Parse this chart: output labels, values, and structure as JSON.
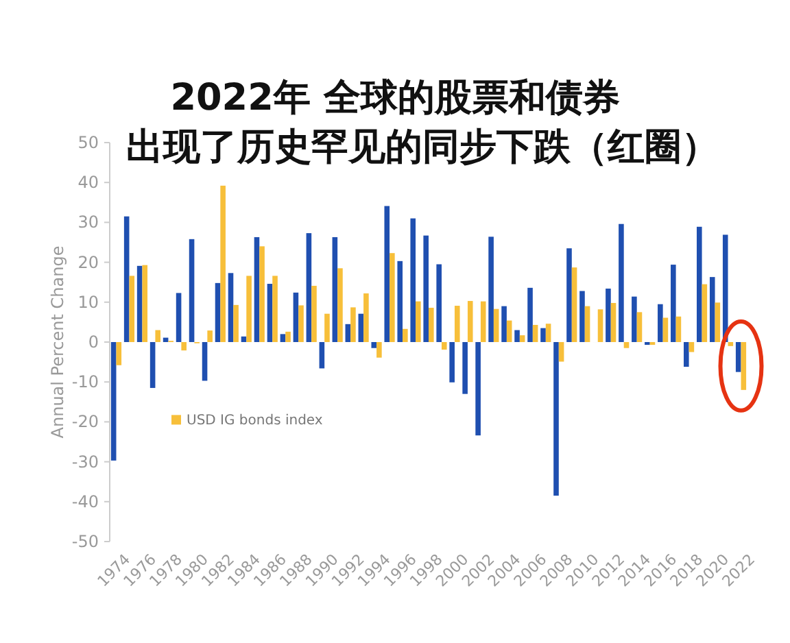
{
  "chart_data": {
    "type": "bar",
    "title": "2022年 全球的股票和债券",
    "subtitle": "出现了历史罕见的同步下跌（红圈）",
    "ylabel": "Annual Percent Change",
    "categories": [
      "1974",
      null,
      "1976",
      null,
      "1978",
      null,
      "1980",
      null,
      "1982",
      null,
      "1984",
      null,
      "1986",
      null,
      "1988",
      null,
      "1990",
      null,
      "1992",
      null,
      "1994",
      null,
      "1996",
      null,
      "1998",
      null,
      "2000",
      null,
      "2002",
      null,
      "2004",
      null,
      "2006",
      null,
      "2008",
      null,
      "2010",
      null,
      "2012",
      null,
      "2014",
      null,
      "2016",
      null,
      "2018",
      null,
      "2020",
      null,
      "2022"
    ],
    "series": [
      {
        "color": "#1f4fb0",
        "values": [
          -29.7,
          31.5,
          19.1,
          -11.5,
          1.1,
          12.3,
          25.8,
          -9.7,
          14.8,
          17.3,
          1.4,
          26.3,
          14.6,
          2.0,
          12.4,
          27.3,
          -6.6,
          26.3,
          4.5,
          7.1,
          -1.5,
          34.1,
          20.3,
          31.0,
          26.7,
          19.5,
          -10.1,
          -13.0,
          -23.4,
          26.4,
          9.0,
          3.0,
          13.6,
          3.5,
          -38.5,
          23.5,
          12.8,
          0.0,
          13.4,
          29.6,
          11.4,
          -0.7,
          9.5,
          19.4,
          -6.2,
          28.9,
          16.3,
          26.9,
          -7.5
        ]
      },
      {
        "name": "USD IG bonds index",
        "color": "#f7bf3a",
        "values": [
          -5.8,
          16.6,
          19.3,
          3.0,
          0.3,
          -2.1,
          -0.3,
          2.9,
          39.2,
          9.3,
          16.6,
          24.0,
          16.6,
          2.6,
          9.2,
          14.1,
          7.1,
          18.5,
          8.7,
          12.2,
          -3.9,
          22.3,
          3.3,
          10.2,
          8.6,
          -1.9,
          9.1,
          10.3,
          10.2,
          8.3,
          5.4,
          1.7,
          4.3,
          4.6,
          -4.9,
          18.7,
          9.0,
          8.2,
          9.8,
          -1.5,
          7.5,
          -0.7,
          6.1,
          6.4,
          -2.5,
          14.5,
          9.9,
          -1.0,
          -12.0
        ]
      }
    ],
    "ylim": [
      -50,
      50
    ],
    "yticks": [
      -50,
      -40,
      -30,
      -20,
      -10,
      0,
      10,
      20,
      30,
      40,
      50
    ],
    "grid": false,
    "legend": "bottom left"
  }
}
